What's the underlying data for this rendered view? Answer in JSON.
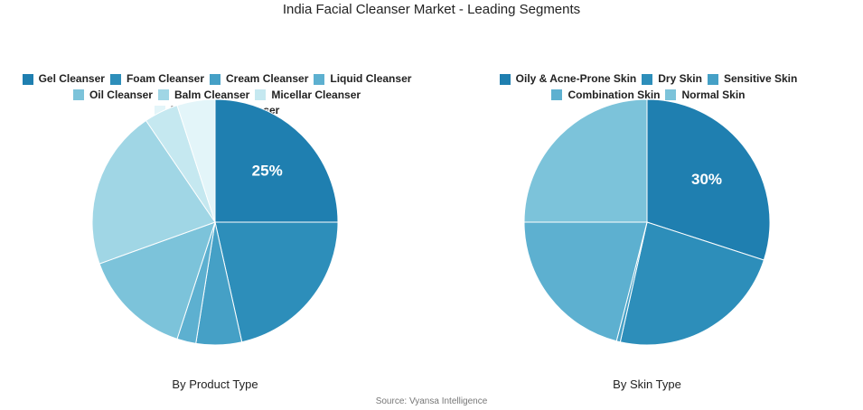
{
  "title": "India Facial Cleanser Market - Leading Segments",
  "source": "Source: Vyansa Intelligence",
  "chart_data": [
    {
      "type": "pie",
      "subtitle": "By Product Type",
      "legend_position": "top",
      "categories": [
        "Gel Cleanser",
        "Foam Cleanser",
        "Cream Cleanser",
        "Liquid Cleanser",
        "Oil Cleanser",
        "Balm Cleanser",
        "Micellar Cleanser",
        "Powder/Bar Cleanser"
      ],
      "values": [
        25,
        21.5,
        6,
        2.5,
        14.5,
        21,
        4.5,
        5
      ],
      "colors": [
        "#1f7fb0",
        "#2d8eba",
        "#45a0c6",
        "#5db0d0",
        "#7cc3da",
        "#a0d6e5",
        "#c5e8f0",
        "#e3f5f9"
      ],
      "data_labels": [
        "25%",
        "",
        "",
        "",
        "",
        "",
        "",
        ""
      ]
    },
    {
      "type": "pie",
      "subtitle": "By Skin Type",
      "legend_position": "top",
      "categories": [
        "Oily & Acne-Prone Skin",
        "Dry Skin",
        "Sensitive Skin",
        "Combination Skin",
        "Normal Skin"
      ],
      "values": [
        30,
        23.5,
        0.5,
        21,
        25
      ],
      "colors": [
        "#1f7fb0",
        "#2d8eba",
        "#45a0c6",
        "#5db0d0",
        "#7cc3da"
      ],
      "data_labels": [
        "30%",
        "",
        "",
        "",
        ""
      ]
    }
  ]
}
